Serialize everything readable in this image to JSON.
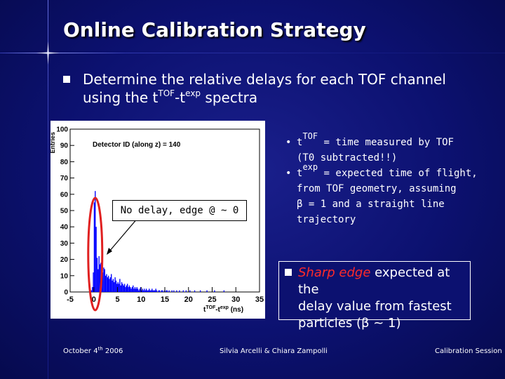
{
  "slide": {
    "title": "Online Calibration Strategy",
    "bullet_main": {
      "line1": "Determine the relative delays for each TOF channel",
      "line2_pre": "using the t",
      "line2_sup1": "TOF",
      "line2_mid": "-t",
      "line2_sup2": "exp",
      "line2_post": " spectra"
    },
    "callout": "No delay, edge @ ~ 0",
    "right_notes": {
      "n1_pre": "t",
      "n1_sup": "TOF",
      "n1_text": " = time measured by TOF",
      "n1_line2": "(T0 subtracted!!)",
      "n2_pre": "t",
      "n2_sup": "exp",
      "n2_text": " = expected time of flight,",
      "n2_line2": "from TOF geometry, assuming",
      "n2_line3": "β = 1 and a straight line",
      "n2_line4": "trajectory"
    },
    "sharp_box": {
      "highlight": "Sharp edge",
      "text1": " expected at the",
      "text2": "delay value from fastest",
      "text3": "particles (β ~ 1)"
    },
    "footer": {
      "date": "October 4",
      "date_sup": "th",
      "date_year": " 2006",
      "authors": "Silvia Arcelli & Chiara Zampolli",
      "session": "Calibration Session"
    }
  },
  "colors": {
    "background": "#0c1170",
    "histogram": "#0000ff",
    "highlight_red": "#ff2a2a"
  },
  "chart_data": {
    "type": "bar",
    "title": "Detector ID (along z) = 140",
    "ylabel": "Entries",
    "xlabel": "t^TOF-t^exp (ns)",
    "xlabel_parts": [
      "t",
      "TOF",
      "-t",
      "exp",
      " (ns)"
    ],
    "xlim": [
      -5,
      35
    ],
    "ylim": [
      0,
      100
    ],
    "x_ticks": [
      -5,
      0,
      5,
      10,
      15,
      20,
      25,
      30,
      35
    ],
    "y_ticks": [
      0,
      10,
      20,
      30,
      40,
      50,
      60,
      70,
      80,
      90,
      100
    ],
    "bin_width": 0.2,
    "bins_start": -0.6,
    "values": [
      1,
      3,
      12,
      55,
      62,
      40,
      21,
      14,
      22,
      17,
      18,
      16,
      12,
      15,
      14,
      10,
      11,
      9,
      10,
      8,
      9,
      11,
      7,
      8,
      6,
      9,
      7,
      5,
      6,
      5,
      8,
      4,
      6,
      5,
      4,
      5,
      3,
      4,
      5,
      3,
      4,
      3,
      2,
      3,
      4,
      2,
      3,
      2,
      3,
      2,
      1,
      2,
      3,
      1,
      2,
      1,
      2,
      1,
      2,
      1,
      1,
      2,
      1,
      1,
      2,
      1,
      1,
      1,
      2,
      1,
      0,
      1,
      1,
      0,
      1,
      1,
      0,
      1,
      0,
      1,
      1,
      0,
      1,
      0,
      0,
      1,
      0,
      1,
      0,
      0,
      1,
      0,
      0,
      1,
      0,
      0,
      0,
      1,
      0,
      0,
      1,
      0,
      0,
      0,
      1,
      0,
      0,
      0,
      0,
      1,
      0,
      0,
      0,
      0,
      0,
      1,
      0,
      0,
      0,
      0,
      0,
      0,
      1,
      0,
      0,
      0,
      0,
      0,
      0,
      0,
      1,
      0,
      0,
      0,
      0,
      0,
      0,
      0,
      0,
      0,
      1,
      0,
      0,
      0,
      0,
      0,
      0,
      0,
      0,
      0,
      0
    ]
  }
}
